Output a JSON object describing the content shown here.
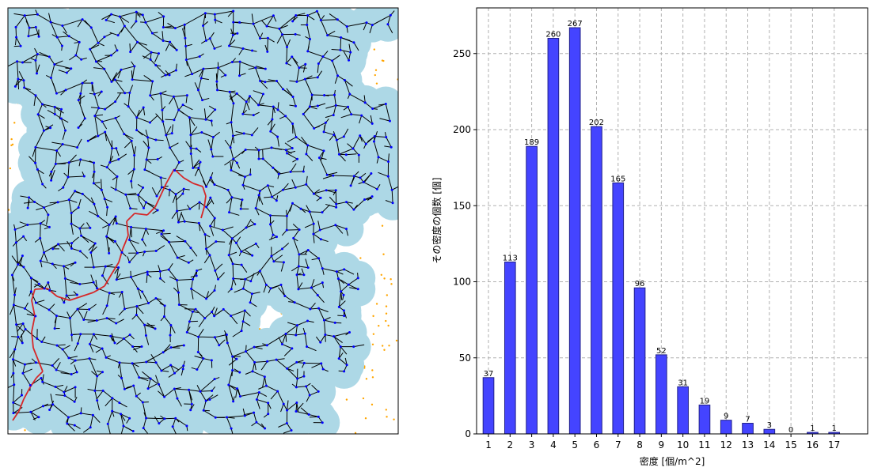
{
  "chart_data": [
    {
      "type": "network",
      "title": "",
      "xlabel": "",
      "ylabel": "",
      "colors": {
        "coverage": "#add8e6",
        "edge": "#000000",
        "node": "#0000ff",
        "path": "#d62728",
        "uncovered_point": "#ffa500"
      }
    },
    {
      "type": "bar",
      "title": "",
      "xlabel": "密度 [個/m^2]",
      "ylabel": "その密度の個数 [個]",
      "categories": [
        "1",
        "2",
        "3",
        "4",
        "5",
        "6",
        "7",
        "8",
        "9",
        "10",
        "11",
        "12",
        "13",
        "14",
        "15",
        "16",
        "17"
      ],
      "values": [
        37,
        113,
        189,
        260,
        267,
        202,
        165,
        96,
        52,
        31,
        19,
        9,
        7,
        3,
        0,
        1,
        1
      ],
      "ylim": [
        0,
        280
      ],
      "yticks": [
        0,
        50,
        100,
        150,
        200,
        250
      ],
      "grid": true,
      "bar_color": "#4444ff",
      "bar_edge_color": "#22228a",
      "grid_color": "#b0b0b0"
    }
  ]
}
